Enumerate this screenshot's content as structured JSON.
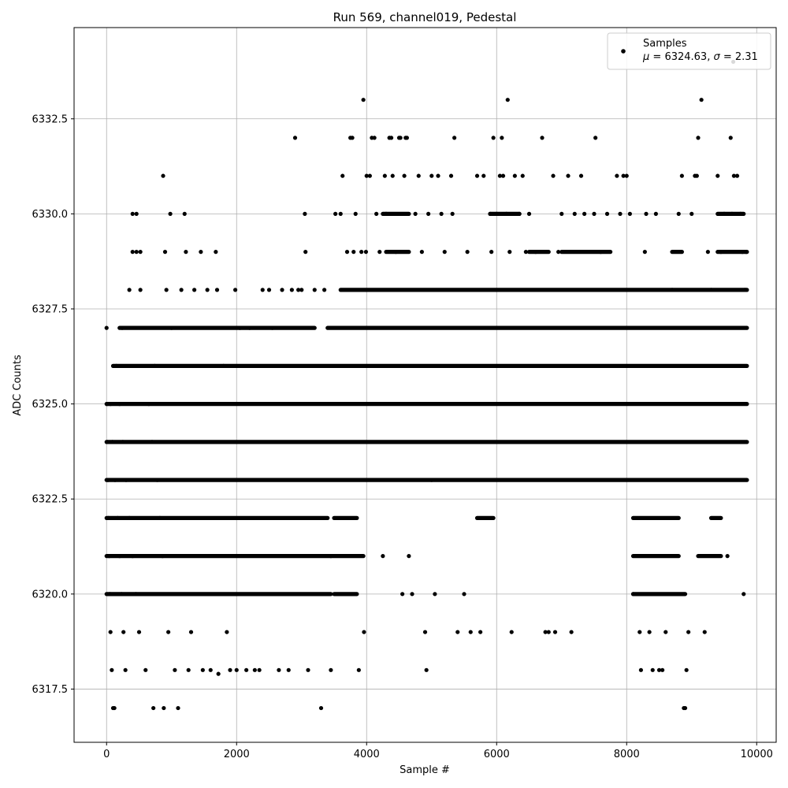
{
  "chart_data": {
    "type": "scatter",
    "title": "Run 569, channel019, Pedestal",
    "xlabel": "Sample #",
    "ylabel": "ADC Counts",
    "xlim": [
      -500,
      10300
    ],
    "ylim": [
      6316.1,
      6334.9
    ],
    "xticks": [
      0,
      2000,
      4000,
      6000,
      8000,
      10000
    ],
    "xtick_labels": [
      "0",
      "2000",
      "4000",
      "6000",
      "8000",
      "10000"
    ],
    "yticks": [
      6317.5,
      6320.0,
      6322.5,
      6325.0,
      6327.5,
      6330.0,
      6332.5
    ],
    "ytick_labels": [
      "6317.5",
      "6320.0",
      "6322.5",
      "6325.0",
      "6327.5",
      "6330.0",
      "6332.5"
    ],
    "grid": true,
    "legend": {
      "placement": "top-right",
      "line1": "Samples",
      "line2_mu_symbol": "μ",
      "line2_mu_text": " = 6324.63, ",
      "line2_sigma_symbol": "σ",
      "line2_sigma_text": " = 2.31"
    },
    "series": [
      {
        "name": "Samples",
        "color": "#000000",
        "marker": "circle",
        "points": [
          [
            0,
            6327
          ],
          [
            5,
            6325
          ],
          [
            10,
            6324
          ],
          [
            20,
            6323
          ],
          [
            30,
            6322
          ],
          [
            40,
            6321
          ],
          [
            50,
            6320
          ],
          [
            60,
            6319
          ],
          [
            80,
            6318
          ],
          [
            100,
            6317
          ],
          [
            120,
            6317
          ],
          [
            60,
            6325
          ],
          [
            90,
            6324
          ],
          [
            130,
            6323
          ],
          [
            170,
            6322
          ],
          [
            200,
            6321
          ],
          [
            230,
            6320
          ],
          [
            260,
            6319
          ],
          [
            290,
            6318
          ],
          [
            150,
            6326
          ],
          [
            200,
            6325
          ],
          [
            250,
            6324
          ],
          [
            300,
            6323
          ],
          [
            350,
            6322
          ],
          [
            400,
            6321
          ],
          [
            450,
            6320
          ],
          [
            500,
            6319
          ],
          [
            240,
            6327
          ],
          [
            350,
            6328
          ],
          [
            400,
            6329
          ],
          [
            400,
            6330
          ],
          [
            460,
            6329
          ],
          [
            460,
            6330
          ],
          [
            520,
            6328
          ],
          [
            520,
            6329
          ],
          [
            600,
            6318
          ],
          [
            650,
            6325
          ],
          [
            700,
            6324
          ],
          [
            720,
            6317
          ],
          [
            740,
            6326
          ],
          [
            780,
            6323
          ],
          [
            820,
            6322
          ],
          [
            860,
            6321
          ],
          [
            870,
            6331
          ],
          [
            880,
            6317
          ],
          [
            900,
            6329
          ],
          [
            920,
            6328
          ],
          [
            950,
            6319
          ],
          [
            980,
            6330
          ],
          [
            1000,
            6327
          ],
          [
            1050,
            6318
          ],
          [
            1100,
            6317
          ],
          [
            1150,
            6328
          ],
          [
            1200,
            6330
          ],
          [
            1220,
            6329
          ],
          [
            1260,
            6318
          ],
          [
            1300,
            6319
          ],
          [
            1350,
            6328
          ],
          [
            1450,
            6329
          ],
          [
            1480,
            6318
          ],
          [
            1550,
            6328
          ],
          [
            1600,
            6318
          ],
          [
            1680,
            6329
          ],
          [
            1700,
            6328
          ],
          [
            1720,
            6317.9
          ],
          [
            1800,
            6326
          ],
          [
            1850,
            6319
          ],
          [
            1900,
            6318
          ],
          [
            1980,
            6328
          ],
          [
            2000,
            6318
          ],
          [
            2050,
            6327
          ],
          [
            2150,
            6318
          ],
          [
            2200,
            6327
          ],
          [
            2280,
            6318
          ],
          [
            2350,
            6318
          ],
          [
            2400,
            6328
          ],
          [
            2500,
            6328
          ],
          [
            2550,
            6327
          ],
          [
            2650,
            6318
          ],
          [
            2700,
            6328
          ],
          [
            2800,
            6318
          ],
          [
            2850,
            6328
          ],
          [
            2900,
            6332
          ],
          [
            2950,
            6328
          ],
          [
            3000,
            6328
          ],
          [
            3050,
            6330
          ],
          [
            3060,
            6329
          ],
          [
            3100,
            6318
          ],
          [
            3200,
            6328
          ],
          [
            3300,
            6317
          ],
          [
            3350,
            6328
          ],
          [
            3450,
            6318
          ],
          [
            3520,
            6330
          ],
          [
            3600,
            6330
          ],
          [
            3630,
            6331
          ],
          [
            3700,
            6329
          ],
          [
            3750,
            6332
          ],
          [
            3780,
            6332
          ],
          [
            3800,
            6329
          ],
          [
            3830,
            6330
          ],
          [
            3880,
            6318
          ],
          [
            3920,
            6329
          ],
          [
            3950,
            6333
          ],
          [
            3960,
            6319
          ],
          [
            3990,
            6329
          ],
          [
            4000,
            6331
          ],
          [
            4050,
            6331
          ],
          [
            4080,
            6332
          ],
          [
            4120,
            6332
          ],
          [
            4150,
            6330
          ],
          [
            4200,
            6329
          ],
          [
            4250,
            6321
          ],
          [
            4280,
            6331
          ],
          [
            4300,
            6330
          ],
          [
            4350,
            6332
          ],
          [
            4380,
            6332
          ],
          [
            4400,
            6331
          ],
          [
            4450,
            6329
          ],
          [
            4500,
            6332
          ],
          [
            4520,
            6332
          ],
          [
            4550,
            6320
          ],
          [
            4580,
            6331
          ],
          [
            4600,
            6332
          ],
          [
            4620,
            6332
          ],
          [
            4650,
            6321
          ],
          [
            4700,
            6320
          ],
          [
            4750,
            6330
          ],
          [
            4800,
            6331
          ],
          [
            4850,
            6329
          ],
          [
            4900,
            6319
          ],
          [
            4920,
            6318
          ],
          [
            4950,
            6330
          ],
          [
            5000,
            6331
          ],
          [
            5050,
            6320
          ],
          [
            5100,
            6331
          ],
          [
            5150,
            6330
          ],
          [
            5200,
            6329
          ],
          [
            5300,
            6331
          ],
          [
            5320,
            6330
          ],
          [
            5350,
            6332
          ],
          [
            5400,
            6319
          ],
          [
            5500,
            6320
          ],
          [
            5550,
            6329
          ],
          [
            5600,
            6319
          ],
          [
            5700,
            6331
          ],
          [
            5750,
            6319
          ],
          [
            5800,
            6331
          ],
          [
            5900,
            6330
          ],
          [
            5920,
            6329
          ],
          [
            5950,
            6332
          ],
          [
            6000,
            6330
          ],
          [
            6050,
            6331
          ],
          [
            6080,
            6332
          ],
          [
            6100,
            6331
          ],
          [
            6150,
            6330
          ],
          [
            6170,
            6333
          ],
          [
            6200,
            6329
          ],
          [
            6230,
            6319
          ],
          [
            6280,
            6331
          ],
          [
            6350,
            6330
          ],
          [
            6400,
            6331
          ],
          [
            6450,
            6329
          ],
          [
            6500,
            6330
          ],
          [
            6600,
            6329
          ],
          [
            6700,
            6332
          ],
          [
            6750,
            6319
          ],
          [
            6800,
            6319
          ],
          [
            6870,
            6331
          ],
          [
            6900,
            6319
          ],
          [
            6950,
            6329
          ],
          [
            7000,
            6330
          ],
          [
            7100,
            6331
          ],
          [
            7150,
            6319
          ],
          [
            7200,
            6330
          ],
          [
            7300,
            6331
          ],
          [
            7350,
            6330
          ],
          [
            7500,
            6330
          ],
          [
            7520,
            6332
          ],
          [
            7600,
            6329
          ],
          [
            7700,
            6330
          ],
          [
            7850,
            6331
          ],
          [
            7900,
            6330
          ],
          [
            7950,
            6331
          ],
          [
            8000,
            6331
          ],
          [
            8050,
            6330
          ],
          [
            8100,
            6320
          ],
          [
            8200,
            6319
          ],
          [
            8220,
            6318
          ],
          [
            8280,
            6329
          ],
          [
            8300,
            6330
          ],
          [
            8350,
            6319
          ],
          [
            8400,
            6318
          ],
          [
            8450,
            6330
          ],
          [
            8500,
            6318
          ],
          [
            8550,
            6318
          ],
          [
            8600,
            6319
          ],
          [
            8700,
            6328
          ],
          [
            8800,
            6330
          ],
          [
            8850,
            6331
          ],
          [
            8880,
            6317
          ],
          [
            8900,
            6317
          ],
          [
            8920,
            6318
          ],
          [
            8950,
            6319
          ],
          [
            9000,
            6330
          ],
          [
            9050,
            6331
          ],
          [
            9080,
            6331
          ],
          [
            9100,
            6332
          ],
          [
            9150,
            6333
          ],
          [
            9200,
            6319
          ],
          [
            9250,
            6329
          ],
          [
            9300,
            6328
          ],
          [
            9400,
            6331
          ],
          [
            9450,
            6329
          ],
          [
            9500,
            6330
          ],
          [
            9550,
            6321
          ],
          [
            9600,
            6332
          ],
          [
            9620,
            6330
          ],
          [
            9640,
            6334
          ],
          [
            9650,
            6331
          ],
          [
            9700,
            6331
          ],
          [
            9750,
            6330
          ],
          [
            9780,
            6329
          ],
          [
            9800,
            6320
          ],
          [
            9820,
            6328
          ],
          [
            9840,
            6329
          ]
        ],
        "bands": [
          {
            "y": 6320,
            "segments": [
              [
                0,
                3450
              ],
              [
                3500,
                3850
              ],
              [
                8100,
                8900
              ]
            ]
          },
          {
            "y": 6321,
            "segments": [
              [
                0,
                3450
              ],
              [
                3450,
                3950
              ],
              [
                8100,
                8800
              ],
              [
                9100,
                9450
              ]
            ]
          },
          {
            "y": 6322,
            "segments": [
              [
                0,
                3400
              ],
              [
                3500,
                3850
              ],
              [
                5700,
                5950
              ],
              [
                8100,
                8800
              ],
              [
                9300,
                9450
              ]
            ]
          },
          {
            "y": 6323,
            "segments": [
              [
                0,
                5000
              ],
              [
                5000,
                9850
              ]
            ]
          },
          {
            "y": 6324,
            "segments": [
              [
                0,
                9850
              ]
            ]
          },
          {
            "y": 6325,
            "segments": [
              [
                0,
                9850
              ]
            ]
          },
          {
            "y": 6326,
            "segments": [
              [
                100,
                9850
              ]
            ]
          },
          {
            "y": 6327,
            "segments": [
              [
                200,
                3200
              ],
              [
                3400,
                9850
              ]
            ]
          },
          {
            "y": 6328,
            "segments": [
              [
                3600,
                9850
              ]
            ]
          },
          {
            "y": 6329,
            "segments": [
              [
                4300,
                4650
              ],
              [
                6500,
                6800
              ],
              [
                7000,
                7750
              ],
              [
                8700,
                8850
              ],
              [
                9400,
                9850
              ]
            ]
          },
          {
            "y": 6330,
            "segments": [
              [
                4250,
                4650
              ],
              [
                5900,
                6350
              ],
              [
                9400,
                9800
              ]
            ]
          }
        ]
      }
    ]
  }
}
